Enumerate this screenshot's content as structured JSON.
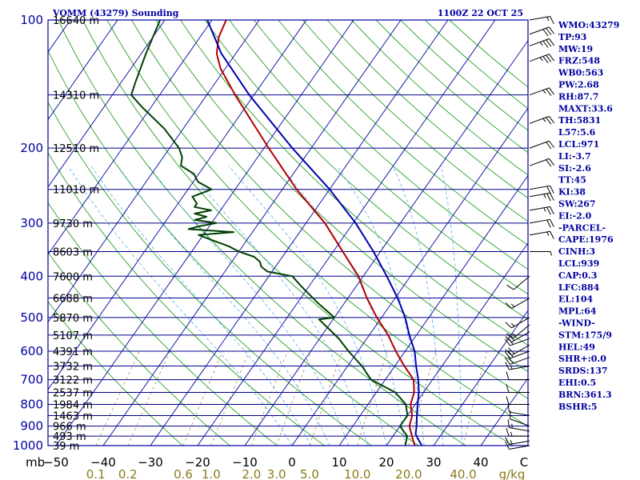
{
  "header": {
    "station": "VOMM (43279) Sounding",
    "time": "1100Z 22 OCT 25"
  },
  "chart_data": {
    "type": "line",
    "subtype": "skew-T log-P",
    "pressure_label": "mb",
    "pressure_ticks": [
      100,
      200,
      300,
      400,
      500,
      600,
      700,
      800,
      900,
      1000
    ],
    "pressure_range": [
      100,
      1000
    ],
    "height_levels": [
      {
        "p": 100,
        "label": "16640 m"
      },
      {
        "p": 150,
        "label": "14310 m"
      },
      {
        "p": 200,
        "label": "12510 m"
      },
      {
        "p": 250,
        "label": "11010 m"
      },
      {
        "p": 300,
        "label": "9730 m"
      },
      {
        "p": 350,
        "label": "8603 m"
      },
      {
        "p": 400,
        "label": "7600 m"
      },
      {
        "p": 450,
        "label": "6688 m"
      },
      {
        "p": 500,
        "label": "5870 m"
      },
      {
        "p": 550,
        "label": "5107 m"
      },
      {
        "p": 600,
        "label": "4391 m"
      },
      {
        "p": 650,
        "label": "3732 m"
      },
      {
        "p": 700,
        "label": "3122 m"
      },
      {
        "p": 750,
        "label": "2537 m"
      },
      {
        "p": 800,
        "label": "1984 m"
      },
      {
        "p": 850,
        "label": "1463 m"
      },
      {
        "p": 900,
        "label": "966 m"
      },
      {
        "p": 950,
        "label": "493 m"
      },
      {
        "p": 1000,
        "label": "39 m"
      }
    ],
    "temp_ticks": [
      "−50",
      "−40",
      "−30",
      "−20",
      "−10",
      "0",
      "10",
      "20",
      "30",
      "40"
    ],
    "temp_unit": "C",
    "temp_range": [
      -50,
      50
    ],
    "mixing_ratio_ticks": [
      "0.1",
      "0.2",
      "0.6",
      "1.0",
      "2.0",
      "3.0",
      "5.0",
      "10.0",
      "20.0",
      "40.0"
    ],
    "mixing_ratio_unit": "g/kg",
    "series": [
      {
        "key": "temperature",
        "color": "#b00000",
        "points": [
          [
            1000,
            26
          ],
          [
            950,
            24
          ],
          [
            900,
            22
          ],
          [
            850,
            21
          ],
          [
            800,
            19
          ],
          [
            750,
            18
          ],
          [
            700,
            16
          ],
          [
            650,
            12
          ],
          [
            600,
            8
          ],
          [
            550,
            4
          ],
          [
            500,
            -1
          ],
          [
            450,
            -6
          ],
          [
            400,
            -11
          ],
          [
            350,
            -18
          ],
          [
            300,
            -26
          ],
          [
            250,
            -37
          ],
          [
            200,
            -49
          ],
          [
            150,
            -64
          ],
          [
            130,
            -71
          ],
          [
            120,
            -74
          ],
          [
            110,
            -76
          ],
          [
            100,
            -77
          ]
        ]
      },
      {
        "key": "dewpoint",
        "color": "#004000",
        "points": [
          [
            1000,
            24
          ],
          [
            950,
            23
          ],
          [
            900,
            20
          ],
          [
            850,
            20
          ],
          [
            800,
            18
          ],
          [
            750,
            14
          ],
          [
            700,
            7
          ],
          [
            650,
            3
          ],
          [
            600,
            -2
          ],
          [
            560,
            -6
          ],
          [
            520,
            -11
          ],
          [
            505,
            -13
          ],
          [
            500,
            -10
          ],
          [
            460,
            -16
          ],
          [
            420,
            -22
          ],
          [
            400,
            -25
          ],
          [
            390,
            -31
          ],
          [
            380,
            -33
          ],
          [
            370,
            -34
          ],
          [
            360,
            -36
          ],
          [
            350,
            -40
          ],
          [
            340,
            -43
          ],
          [
            330,
            -47
          ],
          [
            320,
            -51
          ],
          [
            315,
            -44
          ],
          [
            310,
            -54
          ],
          [
            305,
            -52
          ],
          [
            300,
            -49
          ],
          [
            295,
            -54
          ],
          [
            290,
            -52
          ],
          [
            285,
            -55
          ],
          [
            280,
            -52
          ],
          [
            275,
            -56
          ],
          [
            270,
            -56
          ],
          [
            260,
            -58
          ],
          [
            250,
            -55
          ],
          [
            240,
            -59
          ],
          [
            230,
            -61
          ],
          [
            220,
            -65
          ],
          [
            210,
            -66
          ],
          [
            200,
            -68
          ],
          [
            180,
            -74
          ],
          [
            160,
            -82
          ],
          [
            150,
            -86
          ],
          [
            140,
            -87
          ],
          [
            120,
            -89
          ],
          [
            100,
            -91
          ]
        ]
      },
      {
        "key": "parcel",
        "color": "#0000b0",
        "points": [
          [
            1000,
            27.5
          ],
          [
            980,
            26.5
          ],
          [
            960,
            25.5
          ],
          [
            940,
            24.5
          ],
          [
            920,
            24
          ],
          [
            900,
            23.5
          ],
          [
            850,
            22
          ],
          [
            800,
            20.5
          ],
          [
            750,
            19
          ],
          [
            700,
            17
          ],
          [
            650,
            14.5
          ],
          [
            600,
            12
          ],
          [
            550,
            8.5
          ],
          [
            500,
            5
          ],
          [
            450,
            0.5
          ],
          [
            400,
            -5
          ],
          [
            350,
            -11.5
          ],
          [
            300,
            -19.5
          ],
          [
            250,
            -30
          ],
          [
            200,
            -44
          ],
          [
            150,
            -61
          ],
          [
            120,
            -73
          ],
          [
            100,
            -81
          ]
        ]
      }
    ],
    "wind_barbs": [
      {
        "p": 1000,
        "dir": 260,
        "spd": 10
      },
      {
        "p": 975,
        "dir": 260,
        "spd": 15
      },
      {
        "p": 950,
        "dir": 270,
        "spd": 15
      },
      {
        "p": 925,
        "dir": 280,
        "spd": 15
      },
      {
        "p": 900,
        "dir": 290,
        "spd": 10
      },
      {
        "p": 850,
        "dir": 280,
        "spd": 10
      },
      {
        "p": 800,
        "dir": 270,
        "spd": 10
      },
      {
        "p": 750,
        "dir": 270,
        "spd": 10
      },
      {
        "p": 700,
        "dir": 270,
        "spd": 10
      },
      {
        "p": 650,
        "dir": 260,
        "spd": 15
      },
      {
        "p": 620,
        "dir": 250,
        "spd": 20
      },
      {
        "p": 600,
        "dir": 250,
        "spd": 20
      },
      {
        "p": 580,
        "dir": 240,
        "spd": 20
      },
      {
        "p": 560,
        "dir": 250,
        "spd": 20
      },
      {
        "p": 540,
        "dir": 240,
        "spd": 20
      },
      {
        "p": 520,
        "dir": 230,
        "spd": 15
      },
      {
        "p": 500,
        "dir": 240,
        "spd": 15
      },
      {
        "p": 450,
        "dir": 240,
        "spd": 15
      },
      {
        "p": 400,
        "dir": 230,
        "spd": 10
      },
      {
        "p": 350,
        "dir": 90,
        "spd": 5
      },
      {
        "p": 320,
        "dir": 80,
        "spd": 15
      },
      {
        "p": 300,
        "dir": 80,
        "spd": 20
      },
      {
        "p": 280,
        "dir": 80,
        "spd": 25
      },
      {
        "p": 260,
        "dir": 80,
        "spd": 25
      },
      {
        "p": 250,
        "dir": 80,
        "spd": 20
      },
      {
        "p": 220,
        "dir": 70,
        "spd": 20
      },
      {
        "p": 200,
        "dir": 70,
        "spd": 20
      },
      {
        "p": 175,
        "dir": 70,
        "spd": 25
      },
      {
        "p": 150,
        "dir": 70,
        "spd": 25
      },
      {
        "p": 125,
        "dir": 70,
        "spd": 35
      },
      {
        "p": 115,
        "dir": 70,
        "spd": 35
      },
      {
        "p": 108,
        "dir": 70,
        "spd": 30
      },
      {
        "p": 100,
        "dir": 80,
        "spd": 15
      }
    ]
  },
  "indices": [
    "WMO:43279",
    "TP:93",
    "MW:19",
    "FRZ:548",
    "WB0:563",
    "PW:2.68",
    "RH:87.7",
    "MAXT:33.6",
    "TH:5831",
    "L57:5.6",
    "LCL:971",
    "LI:-3.7",
    "SI:-2.6",
    "TT:45",
    "KI:38",
    "SW:267",
    "EI:-2.0",
    "-PARCEL-",
    "CAPE:1976",
    "CINH:3",
    "LCL:939",
    "CAP:0.3",
    "LFC:884",
    "EL:104",
    "MPL:64",
    "-WIND-",
    "STM:175/9",
    "HEL:49",
    "SHR+:0.0",
    "SRDS:137",
    "EHI:0.5",
    "BRN:361.3",
    "BSHR:5"
  ],
  "colors": {
    "frame": "#0000a0",
    "isobar": "#00008b",
    "isotherm": "#0000a0",
    "dry_adiabat": "#2aa02a",
    "moist_adiabat": "#5aaaee",
    "mixing_ratio": "#9a8c4c",
    "text": "#000000",
    "title": "#0000a0",
    "barb": "#000000",
    "mixing_label": "#8b7a1a"
  }
}
